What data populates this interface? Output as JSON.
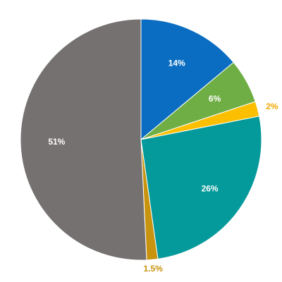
{
  "chart_data": {
    "type": "pie",
    "start_angle_deg": 0,
    "direction": "clockwise",
    "slices": [
      {
        "label": "14%",
        "value": 14,
        "color": "#0a6dc2",
        "label_color": "#ffffff",
        "label_placement": "inside"
      },
      {
        "label": "6%",
        "value": 6,
        "color": "#6fae45",
        "label_color": "#ffffff",
        "label_placement": "inside"
      },
      {
        "label": "2%",
        "value": 2,
        "color": "#fbbf00",
        "label_color": "#f0a800",
        "label_placement": "outside"
      },
      {
        "label": "26%",
        "value": 26,
        "color": "#04999a",
        "label_color": "#ffffff",
        "label_placement": "inside"
      },
      {
        "label": "1.5%",
        "value": 1.5,
        "color": "#c8930f",
        "label_color": "#c8930f",
        "label_placement": "outside"
      },
      {
        "label": "51%",
        "value": 51,
        "color": "#767171",
        "label_color": "#ffffff",
        "label_placement": "inside"
      }
    ]
  }
}
